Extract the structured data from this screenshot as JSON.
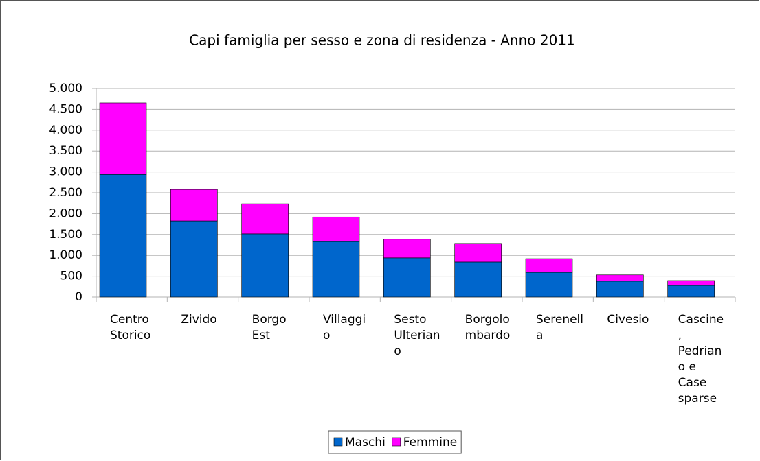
{
  "chart_data": {
    "type": "bar",
    "stacked": true,
    "title": "Capi famiglia per sesso e zona di residenza - Anno 2011",
    "categories": [
      "Centro Storico",
      "Zivido",
      "Borgo Est",
      "Villaggio",
      "Sesto Ulteriano",
      "Borgolombardo",
      "Serenella",
      "Civesio",
      "Cascine, Pedriano e Case sparse"
    ],
    "series": [
      {
        "name": "Maschi",
        "color": "#0066cc",
        "values": [
          2940,
          1825,
          1515,
          1330,
          940,
          840,
          590,
          380,
          280
        ]
      },
      {
        "name": "Femmine",
        "color": "#ff00ff",
        "values": [
          1715,
          755,
          720,
          590,
          445,
          445,
          330,
          150,
          115
        ]
      }
    ],
    "ylim": [
      0,
      5000
    ],
    "yticks": [
      0,
      500,
      {
        "value": 1000,
        "label": "1.000"
      },
      {
        "value": 1500,
        "label": "1.500"
      },
      {
        "value": 2000,
        "label": "2.000"
      },
      {
        "value": 2500,
        "label": "2.500"
      },
      {
        "value": 3000,
        "label": "3.000"
      },
      {
        "value": 3500,
        "label": "3.500"
      },
      {
        "value": 4000,
        "label": "4.000"
      },
      {
        "value": 4500,
        "label": "4.500"
      },
      {
        "value": 5000,
        "label": "5.000"
      }
    ],
    "grid": true,
    "legend": "bottom"
  }
}
